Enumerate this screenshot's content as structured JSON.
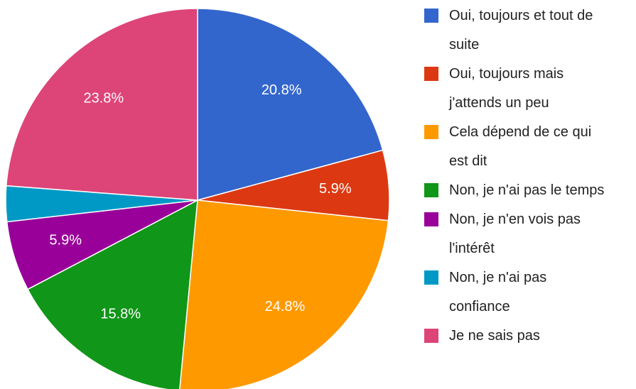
{
  "chart_data": {
    "type": "pie",
    "categories": [
      "Oui, toujours et tout de suite",
      "Oui, toujours mais j'attends un peu",
      "Cela dépend de ce qui est dit",
      "Non, je n'ai pas le temps",
      "Non, je n'en vois pas l'intérêt",
      "Non, je n'ai pas confiance",
      "Je ne sais pas"
    ],
    "values": [
      20.8,
      5.9,
      24.8,
      15.8,
      5.9,
      3.0,
      23.8
    ],
    "value_labels": [
      "20.8%",
      "5.9%",
      "24.8%",
      "15.8%",
      "5.9%",
      null,
      "23.8%"
    ],
    "colors": [
      "#3366cc",
      "#dc3912",
      "#ff9900",
      "#109618",
      "#990099",
      "#0099c6",
      "#dd4477"
    ],
    "legend": "right"
  }
}
